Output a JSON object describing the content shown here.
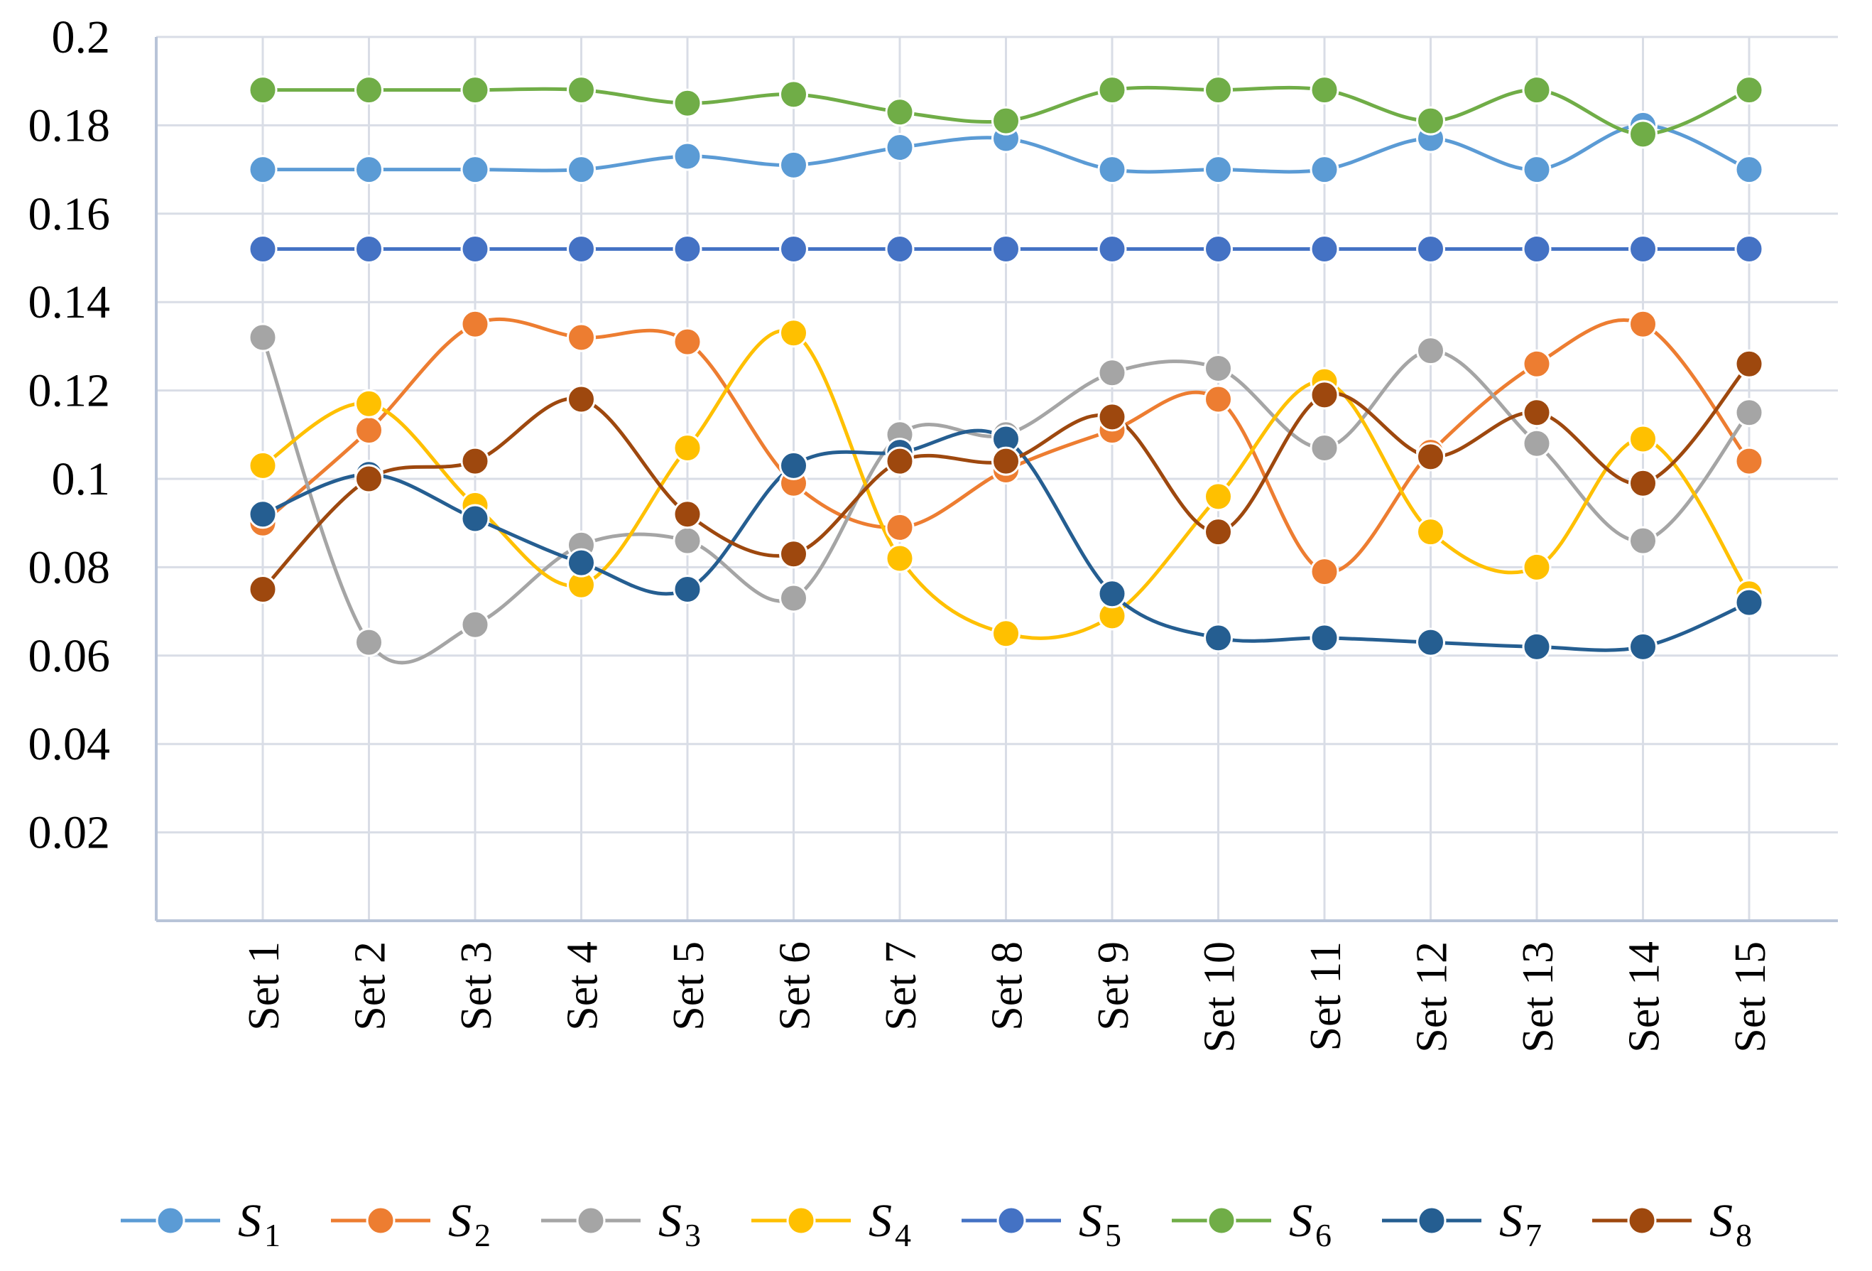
{
  "chart_data": {
    "type": "line",
    "title": "",
    "xlabel": "",
    "ylabel": "",
    "ylim": [
      0,
      0.2
    ],
    "yticks": [
      "0.2",
      "0.18",
      "0.16",
      "0.14",
      "0.12",
      "0.1",
      "0.08",
      "0.06",
      "0.04",
      "0.02"
    ],
    "ytick_values": [
      0.2,
      0.18,
      0.16,
      0.14,
      0.12,
      0.1,
      0.08,
      0.06,
      0.04,
      0.02
    ],
    "grid": true,
    "legend_position": "bottom",
    "categories": [
      "Set 1",
      "Set 2",
      "Set 3",
      "Set 4",
      "Set 5",
      "Set 6",
      "Set 7",
      "Set 8",
      "Set 9",
      "Set 10",
      "Set 11",
      "Set 12",
      "Set 13",
      "Set 14",
      "Set 15"
    ],
    "series": [
      {
        "name": "S",
        "sub": "1",
        "color": "#5B9BD5",
        "values": [
          0.17,
          0.17,
          0.17,
          0.17,
          0.173,
          0.171,
          0.175,
          0.177,
          0.17,
          0.17,
          0.17,
          0.177,
          0.17,
          0.18,
          0.17
        ]
      },
      {
        "name": "S",
        "sub": "2",
        "color": "#ED7D31",
        "values": [
          0.09,
          0.111,
          0.135,
          0.132,
          0.131,
          0.099,
          0.089,
          0.102,
          0.111,
          0.118,
          0.079,
          0.106,
          0.126,
          0.135,
          0.104
        ]
      },
      {
        "name": "S",
        "sub": "3",
        "color": "#A5A5A5",
        "values": [
          0.132,
          0.063,
          0.067,
          0.085,
          0.086,
          0.073,
          0.11,
          0.11,
          0.124,
          0.125,
          0.107,
          0.129,
          0.108,
          0.086,
          0.115
        ]
      },
      {
        "name": "S",
        "sub": "4",
        "color": "#FFC000",
        "values": [
          0.103,
          0.117,
          0.094,
          0.076,
          0.107,
          0.133,
          0.082,
          0.065,
          0.069,
          0.096,
          0.122,
          0.088,
          0.08,
          0.109,
          0.074
        ]
      },
      {
        "name": "S",
        "sub": "5",
        "color": "#4472C4",
        "values": [
          0.152,
          0.152,
          0.152,
          0.152,
          0.152,
          0.152,
          0.152,
          0.152,
          0.152,
          0.152,
          0.152,
          0.152,
          0.152,
          0.152,
          0.152
        ]
      },
      {
        "name": "S",
        "sub": "6",
        "color": "#70AD47",
        "values": [
          0.188,
          0.188,
          0.188,
          0.188,
          0.185,
          0.187,
          0.183,
          0.181,
          0.188,
          0.188,
          0.188,
          0.181,
          0.188,
          0.178,
          0.188
        ]
      },
      {
        "name": "S",
        "sub": "7",
        "color": "#255E91",
        "values": [
          0.092,
          0.101,
          0.091,
          0.081,
          0.075,
          0.103,
          0.106,
          0.109,
          0.074,
          0.064,
          0.064,
          0.063,
          0.062,
          0.062,
          0.072
        ]
      },
      {
        "name": "S",
        "sub": "8",
        "color": "#9E480E",
        "values": [
          0.075,
          0.1,
          0.104,
          0.118,
          0.092,
          0.083,
          0.104,
          0.104,
          0.114,
          0.088,
          0.119,
          0.105,
          0.115,
          0.099,
          0.126
        ]
      }
    ]
  }
}
